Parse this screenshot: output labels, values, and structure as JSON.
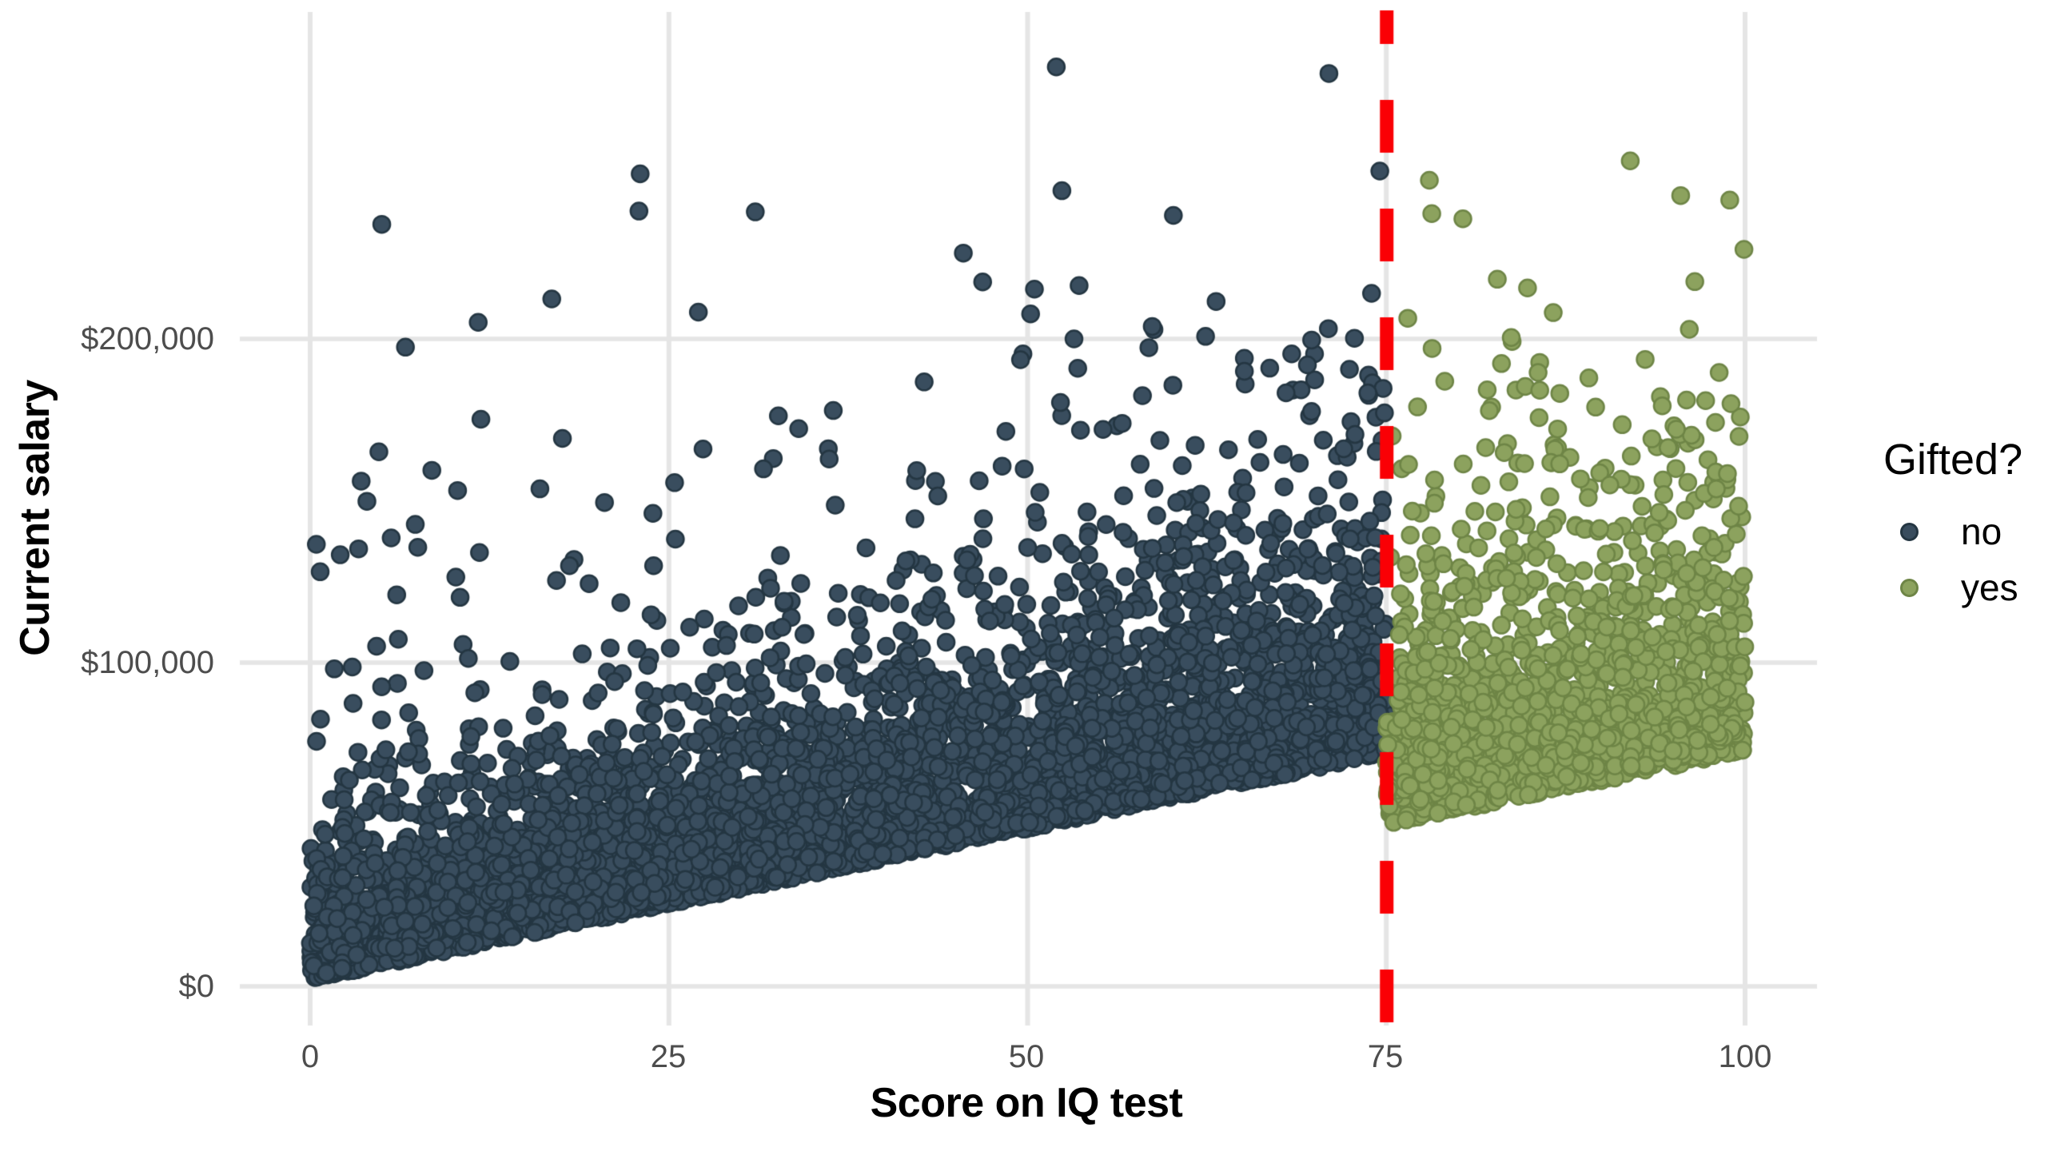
{
  "chart_data": {
    "type": "scatter",
    "title": "",
    "xlabel": "Score on IQ test",
    "ylabel": "Current salary",
    "x_ticks": [
      {
        "value": 0,
        "label": "0"
      },
      {
        "value": 25,
        "label": "25"
      },
      {
        "value": 50,
        "label": "50"
      },
      {
        "value": 75,
        "label": "75"
      },
      {
        "value": 100,
        "label": "100"
      }
    ],
    "y_ticks": [
      {
        "value": 0,
        "label": "$0"
      },
      {
        "value": 100000,
        "label": "$100,000"
      },
      {
        "value": 200000,
        "label": "$200,000"
      }
    ],
    "xlim": [
      -5,
      105
    ],
    "ylim": [
      -12000,
      301000
    ],
    "grid": "major-only",
    "grid_color": "#E5E5E5",
    "background": "#FFFFFF",
    "legend": {
      "title": "Gifted?",
      "position": "right",
      "items": [
        {
          "label": "no"
        },
        {
          "label": "yes"
        }
      ]
    },
    "cutoff_line": {
      "x": 75,
      "color": "#FA0005",
      "style": "dashed",
      "line_width": 17,
      "dash": [
        66,
        70
      ]
    },
    "point_style": {
      "radius": 10.5,
      "stroke_width": 2.5
    },
    "seed": 1337,
    "series": [
      {
        "name": "no",
        "fill": "#394D5E",
        "stroke": "#243642",
        "n": 5000,
        "score_min": 0,
        "score_max": 75,
        "base_salary_at_min": 2000,
        "base_salary_slope": 933,
        "noise_mean_at_min": 17000,
        "noise_mean_slope": 180,
        "noise_cap": 260000,
        "spray_fraction": 0.035,
        "spray_exponent": 1.9,
        "spray_ceiling": 240000,
        "outliers": [
          [
            52,
            284000
          ],
          [
            71,
            282000
          ],
          [
            23,
            251000
          ]
        ]
      },
      {
        "name": "yes",
        "fill": "#8CA25E",
        "stroke": "#6E8546",
        "n": 1600,
        "score_min": 75,
        "score_max": 100,
        "base_salary_at_min": 50000,
        "base_salary_slope": 900,
        "noise_mean_at_min": 30000,
        "noise_mean_slope": 100,
        "noise_cap": 245000,
        "spray_fraction": 0.03,
        "spray_exponent": 1.9,
        "spray_ceiling": 235000,
        "outliers": [
          [
            78,
            249000
          ],
          [
            92,
            255000
          ]
        ]
      }
    ]
  }
}
